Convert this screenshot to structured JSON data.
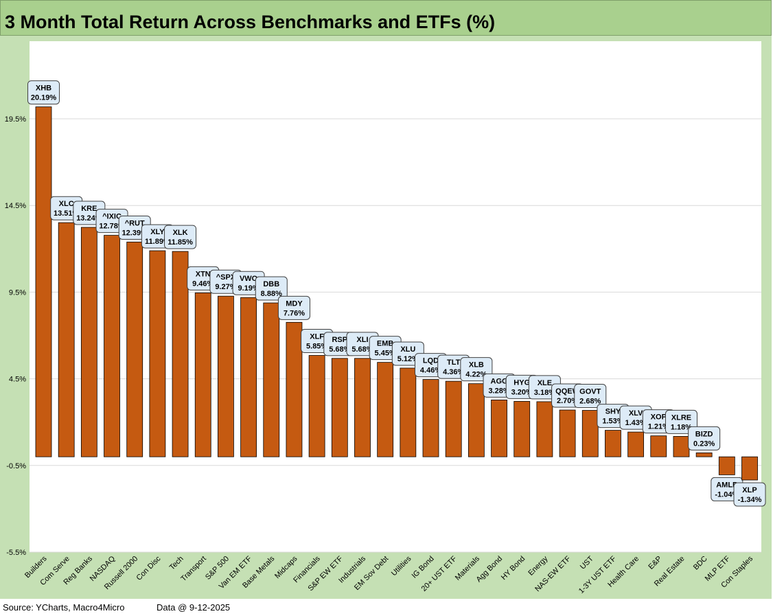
{
  "title": "3 Month Total Return Across Benchmarks and ETFs (%)",
  "footer": {
    "source": "Source: YCharts, Macro4Micro",
    "data_date": "Data @ 9-12-2025"
  },
  "colors": {
    "bar": "#c55a11",
    "title_bg": "#a9d08e",
    "outer_bg": "#c5e0b4",
    "label_bg": "#ddebf7",
    "gridline": "#d9d9d9"
  },
  "chart_data": {
    "type": "bar",
    "title": "3 Month Total Return Across Benchmarks and ETFs (%)",
    "xlabel": "",
    "ylabel": "",
    "ylim": [
      -5.5,
      24.0
    ],
    "yticks": [
      19.5,
      14.5,
      9.5,
      4.5,
      -0.5,
      -5.5
    ],
    "ytick_labels": [
      "19.5%",
      "14.5%",
      "9.5%",
      "4.5%",
      "-0.5%",
      "-5.5%"
    ],
    "grid": true,
    "legend": "none",
    "categories": [
      "Builders",
      "Com Serve",
      "Reg Banks",
      "NASDAQ",
      "Russell 2000",
      "Con Disc",
      "Tech",
      "Transport",
      "S&P 500",
      "Van EM ETF",
      "Base Metals",
      "Midcaps",
      "Financials",
      "S&P EW ETF",
      "Industrials",
      "EM Sov Debt",
      "Utilities",
      "IG Bond",
      "20+ UST ETF",
      "Materials",
      "Agg Bond",
      "HY Bond",
      "Energy",
      "NAS-EW ETF",
      "UST",
      "1-3Y UST ETF",
      "Health Care",
      "E&P",
      "Real Estate",
      "BDC",
      "MLP ETF",
      "Con Staples"
    ],
    "tickers": [
      "XHB",
      "XLC",
      "KRE",
      "^IXIC",
      "^RUT",
      "XLY",
      "XLK",
      "XTN",
      "^SPX",
      "VWO",
      "DBB",
      "MDY",
      "XLF",
      "RSP",
      "XLI",
      "EMB",
      "XLU",
      "LQD",
      "TLT",
      "XLB",
      "AGG",
      "HYG",
      "XLE",
      "QQEW",
      "GOVT",
      "SHY",
      "XLV",
      "XOP",
      "XLRE",
      "BIZD",
      "AMLP",
      "XLP"
    ],
    "values": [
      20.19,
      13.51,
      13.24,
      12.78,
      12.39,
      11.89,
      11.85,
      9.46,
      9.27,
      9.19,
      8.88,
      7.76,
      5.85,
      5.68,
      5.68,
      5.45,
      5.12,
      4.46,
      4.36,
      4.22,
      3.28,
      3.2,
      3.18,
      2.7,
      2.68,
      1.53,
      1.43,
      1.21,
      1.18,
      0.23,
      -1.04,
      -1.34
    ],
    "value_labels": [
      "20.19%",
      "13.51%",
      "13.24%",
      "12.78%",
      "12.39%",
      "11.89%",
      "11.85%",
      "9.46%",
      "9.27%",
      "9.19%",
      "8.88%",
      "7.76%",
      "5.85%",
      "5.68%",
      "5.68%",
      "5.45%",
      "5.12%",
      "4.46%",
      "4.36%",
      "4.22%",
      "3.28%",
      "3.20%",
      "3.18%",
      "2.70%",
      "2.68%",
      "1.53%",
      "1.43%",
      "1.21%",
      "1.18%",
      "0.23%",
      "-1.04%",
      "-1.34%"
    ]
  }
}
